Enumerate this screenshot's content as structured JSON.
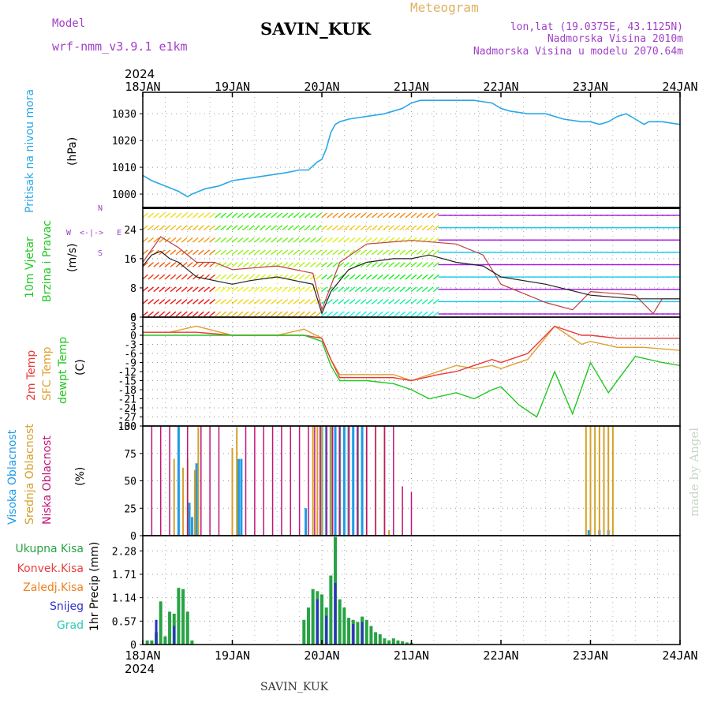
{
  "header": {
    "model_label": "Model",
    "model_name": "wrf-nmm_v3.9.1 e1km",
    "station": "SAVIN_KUK",
    "meteogram_label": "Meteogram",
    "lonlat": "lon,lat (19.0375E, 43.1125N)",
    "elevation": "Nadmorska Visina 2010m",
    "model_elevation": "Nadmorska Visina u modelu 2070.64m",
    "year_top": "2024",
    "year_bottom": "2024",
    "footer_station": "SAVIN_KUK",
    "credit": "made by Angel"
  },
  "colors": {
    "pressure": "#29a8e8",
    "temp2m": "#e83a3a",
    "sfc_temp": "#e0a030",
    "dewpt": "#22c722",
    "cloud_high": "#1f9be6",
    "cloud_mid": "#d4a02a",
    "cloud_low": "#c0157a",
    "precip_total": "#27a344",
    "precip_snow": "#3030c8",
    "precip_conv": "#e84040",
    "precip_frz": "#f08020",
    "precip_graupel": "#30c8b0",
    "label_purple": "#a040c8",
    "label_gold": "#e0b060",
    "grid": "#9a9a9a",
    "credit": "#c8d8c8"
  },
  "chart_data": [
    {
      "panel": "pressure",
      "type": "line",
      "labels": [
        "Pritisak na nivou mora",
        "(hPa)"
      ],
      "x_ticks": [
        "18JAN",
        "19JAN",
        "20JAN",
        "21JAN",
        "22JAN",
        "23JAN",
        "24JAN"
      ],
      "y_ticks": [
        "1000",
        "1010",
        "1020",
        "1030"
      ],
      "ylim": [
        995,
        1038
      ],
      "series": [
        {
          "x": [
            0,
            0.1,
            0.25,
            0.4,
            0.5,
            0.55,
            0.7,
            0.85,
            1.0,
            1.2,
            1.4,
            1.6,
            1.75,
            1.85,
            1.95,
            2.0,
            2.05,
            2.1,
            2.15,
            2.2,
            2.3,
            2.5,
            2.7,
            2.9,
            3.0,
            3.1,
            3.3,
            3.5,
            3.7,
            3.9,
            4.0,
            4.1,
            4.3,
            4.5,
            4.7,
            4.9,
            5.0,
            5.1,
            5.2,
            5.3,
            5.4,
            5.5,
            5.6,
            5.65,
            5.8,
            6.0
          ],
          "y": [
            1007,
            1005,
            1003,
            1001,
            999,
            1000,
            1002,
            1003,
            1005,
            1006,
            1007,
            1008,
            1009,
            1009,
            1012,
            1013,
            1017,
            1023,
            1026,
            1027,
            1028,
            1029,
            1030,
            1032,
            1034,
            1035,
            1035,
            1035,
            1035,
            1034,
            1032,
            1031,
            1030,
            1030,
            1028,
            1027,
            1027,
            1026,
            1027,
            1029,
            1030,
            1028,
            1026,
            1027,
            1027,
            1026
          ]
        }
      ]
    },
    {
      "panel": "wind",
      "type": "line",
      "labels": [
        "10m Vjetar",
        "Brzina i Pravac",
        "(m/s)"
      ],
      "direction_legend": [
        "W",
        "<-|->",
        "E",
        "N",
        "S"
      ],
      "y_ticks": [
        "0",
        "8",
        "16",
        "24"
      ],
      "ylim": [
        0,
        30
      ],
      "series": [
        {
          "name": "speed",
          "x": [
            0,
            0.1,
            0.2,
            0.3,
            0.4,
            0.5,
            0.6,
            0.8,
            1.0,
            1.2,
            1.5,
            1.7,
            1.9,
            2.0,
            2.1,
            2.3,
            2.5,
            2.8,
            3.0,
            3.2,
            3.5,
            3.8,
            4.0,
            4.5,
            5.0,
            5.5,
            6.0
          ],
          "y": [
            14,
            17,
            18,
            16,
            15,
            13,
            11,
            10,
            9,
            10,
            11,
            10,
            9,
            1,
            7,
            13,
            15,
            16,
            16,
            17,
            15,
            14,
            11,
            9,
            6,
            5,
            5
          ]
        },
        {
          "name": "gust",
          "x": [
            0,
            0.2,
            0.4,
            0.6,
            0.8,
            1.0,
            1.5,
            1.9,
            2.0,
            2.2,
            2.5,
            3.0,
            3.5,
            3.8,
            4.0,
            4.2,
            4.5,
            4.8,
            5.0,
            5.5,
            5.7,
            5.8,
            6.0
          ],
          "y": [
            15,
            22,
            19,
            15,
            15,
            13,
            14,
            12,
            2,
            15,
            20,
            21,
            20,
            17,
            9,
            7,
            4,
            2,
            7,
            6,
            1,
            5,
            5
          ]
        }
      ]
    },
    {
      "panel": "temperature",
      "type": "line",
      "labels": [
        "2m Temp",
        "SFC Temp",
        "dewpt Temp",
        "(C)"
      ],
      "y_ticks": [
        "-30",
        "-27",
        "-24",
        "-21",
        "-18",
        "-15",
        "-12",
        "-9",
        "-6",
        "-3",
        "0",
        "3",
        "6"
      ],
      "ylim": [
        -30,
        6
      ],
      "series": [
        {
          "name": "2m",
          "x": [
            0,
            0.3,
            0.6,
            1.0,
            1.5,
            1.8,
            2.0,
            2.1,
            2.2,
            2.5,
            2.8,
            3.0,
            3.3,
            3.5,
            3.7,
            3.9,
            4.0,
            4.1,
            4.3,
            4.6,
            4.9,
            5.0,
            5.3,
            5.6,
            6.0
          ],
          "y": [
            1,
            1,
            1,
            0,
            0,
            0,
            -1,
            -8,
            -14,
            -14,
            -14,
            -15,
            -13,
            -12,
            -10,
            -8,
            -9,
            -8,
            -6,
            3,
            0,
            0,
            -1,
            -1,
            -1
          ]
        },
        {
          "name": "sfc",
          "x": [
            0,
            0.3,
            0.6,
            1.0,
            1.5,
            1.8,
            2.0,
            2.1,
            2.2,
            2.5,
            2.8,
            3.0,
            3.3,
            3.5,
            3.7,
            3.9,
            4.0,
            4.1,
            4.3,
            4.6,
            4.9,
            5.0,
            5.3,
            5.6,
            6.0
          ],
          "y": [
            1,
            1,
            3,
            0,
            0,
            2,
            -1,
            -8,
            -13,
            -13,
            -13,
            -15,
            -12,
            -10,
            -11,
            -10,
            -11,
            -10,
            -8,
            3,
            -3,
            -2,
            -4,
            -4,
            -5
          ]
        },
        {
          "name": "dewpt",
          "x": [
            0,
            0.3,
            0.6,
            1.0,
            1.5,
            1.8,
            2.0,
            2.1,
            2.2,
            2.5,
            2.8,
            3.0,
            3.2,
            3.5,
            3.7,
            3.9,
            4.0,
            4.2,
            4.4,
            4.6,
            4.8,
            5.0,
            5.2,
            5.5,
            5.8,
            6.0
          ],
          "y": [
            0,
            0,
            0,
            0,
            0,
            0,
            -2,
            -10,
            -15,
            -15,
            -16,
            -18,
            -21,
            -19,
            -21,
            -18,
            -17,
            -23,
            -27,
            -12,
            -26,
            -9,
            -19,
            -7,
            -9,
            -10
          ]
        }
      ]
    },
    {
      "panel": "clouds",
      "type": "bar",
      "labels": [
        "Visoka Oblacnost",
        "Srednja Oblacnost",
        "Niska Oblacnost",
        "(%)"
      ],
      "y_ticks": [
        "0",
        "25",
        "50",
        "75",
        "100"
      ],
      "ylim": [
        0,
        100
      ],
      "series": [
        {
          "name": "high",
          "x": [
            0.4,
            0.52,
            0.55,
            0.6,
            1.07,
            1.1,
            1.82,
            2.0,
            2.05,
            2.1,
            2.15,
            2.2,
            2.25,
            2.3,
            2.35,
            2.4,
            2.45,
            4.98,
            5.1,
            5.2
          ],
          "y": [
            100,
            30,
            17,
            66,
            70,
            70,
            25,
            100,
            100,
            100,
            100,
            100,
            100,
            100,
            100,
            100,
            100,
            5,
            5,
            5
          ]
        },
        {
          "name": "mid",
          "x": [
            0.35,
            0.45,
            0.5,
            0.58,
            0.62,
            1.0,
            1.05,
            1.9,
            1.95,
            2.0,
            2.1,
            2.2,
            2.3,
            2.4,
            2.5,
            2.6,
            2.7,
            2.75,
            4.95,
            5.0,
            5.05,
            5.1,
            5.15,
            5.2,
            5.25
          ],
          "y": [
            70,
            62,
            70,
            60,
            99,
            80,
            99,
            100,
            100,
            100,
            100,
            100,
            100,
            100,
            100,
            100,
            100,
            5,
            100,
            100,
            100,
            100,
            100,
            100,
            100
          ]
        },
        {
          "name": "low",
          "x": [
            0.1,
            0.2,
            0.3,
            0.5,
            0.65,
            0.75,
            0.85,
            1.15,
            1.25,
            1.35,
            1.45,
            1.55,
            1.65,
            1.75,
            1.85,
            1.92,
            1.98,
            2.05,
            2.12,
            2.2,
            2.3,
            2.4,
            2.5,
            2.6,
            2.7,
            2.8,
            2.9,
            3.0
          ],
          "y": [
            100,
            100,
            100,
            100,
            100,
            100,
            100,
            100,
            100,
            100,
            100,
            100,
            100,
            100,
            100,
            100,
            100,
            100,
            100,
            100,
            100,
            100,
            100,
            100,
            100,
            100,
            45,
            40
          ]
        }
      ]
    },
    {
      "panel": "precip",
      "type": "bar",
      "labels": [
        "Ukupna Kisa",
        "Konvek.Kisa",
        "Zaledj.Kisa",
        "Snijeg",
        "Grad",
        "1hr Precip (mm)"
      ],
      "y_ticks": [
        "0",
        "0.57",
        "1.14",
        "1.71",
        "2.28"
      ],
      "ylim": [
        0,
        2.65
      ],
      "series": [
        {
          "name": "total",
          "x": [
            0.05,
            0.1,
            0.15,
            0.2,
            0.25,
            0.3,
            0.35,
            0.4,
            0.45,
            0.5,
            0.55,
            1.8,
            1.85,
            1.9,
            1.95,
            2.0,
            2.05,
            2.1,
            2.15,
            2.2,
            2.25,
            2.3,
            2.35,
            2.4,
            2.45,
            2.5,
            2.55,
            2.6,
            2.65,
            2.7,
            2.75,
            2.8,
            2.85,
            2.9,
            2.95,
            3.0
          ],
          "y": [
            0.1,
            0.1,
            0.3,
            1.05,
            0.2,
            0.8,
            0.75,
            1.38,
            1.35,
            0.8,
            0.1,
            0.6,
            0.9,
            1.35,
            1.3,
            1.22,
            0.9,
            1.68,
            2.62,
            1.1,
            0.9,
            0.65,
            0.6,
            0.55,
            0.68,
            0.6,
            0.45,
            0.3,
            0.25,
            0.15,
            0.1,
            0.15,
            0.1,
            0.08,
            0.05,
            0.04
          ]
        },
        {
          "name": "snow",
          "x": [
            0.15,
            0.35,
            1.95,
            2.05,
            2.15,
            2.35,
            2.45
          ],
          "y": [
            0.6,
            0.45,
            1.1,
            0.7,
            1.5,
            0.5,
            0.55
          ]
        }
      ]
    }
  ]
}
